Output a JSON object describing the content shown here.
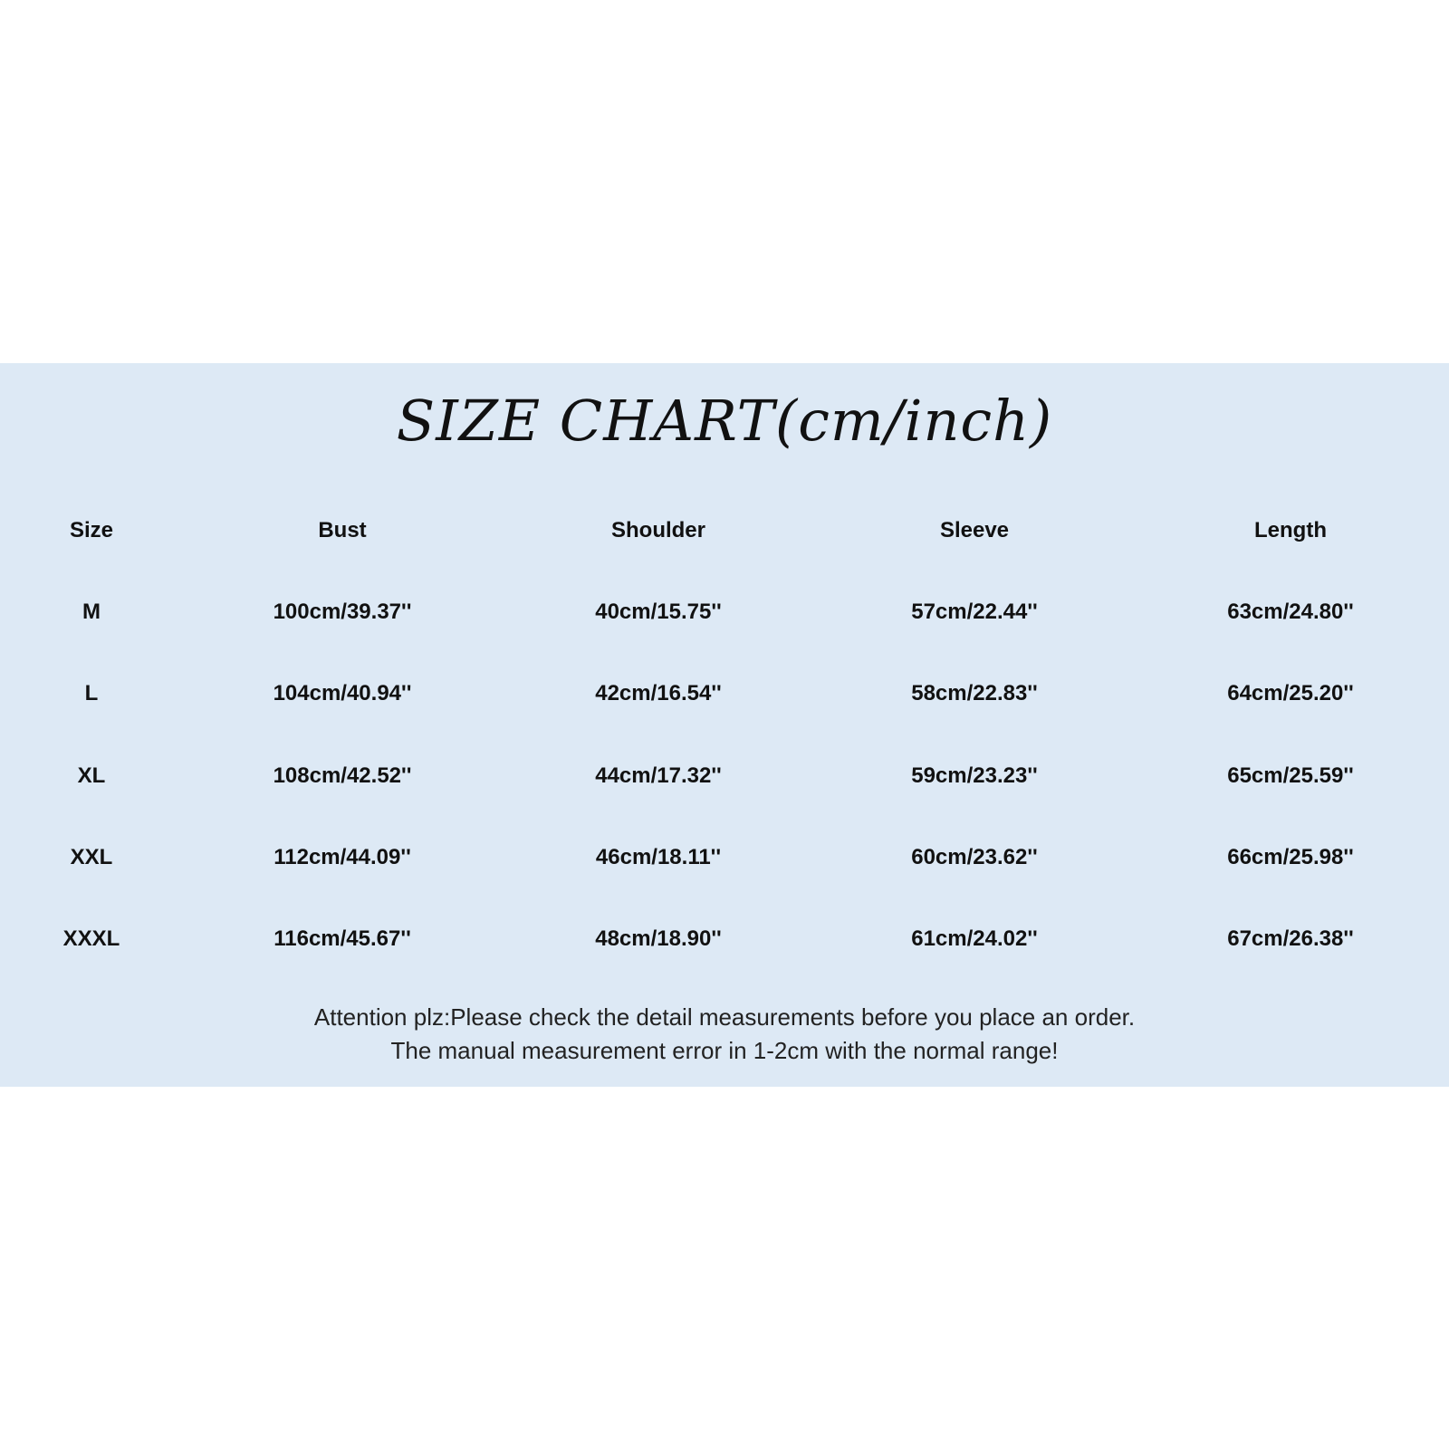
{
  "title": "SIZE CHART(cm/inch)",
  "colors": {
    "panel_background": "#dde9f5",
    "text": "#111111"
  },
  "table": {
    "headers": [
      "Size",
      "Bust",
      "Shoulder",
      "Sleeve",
      "Length"
    ],
    "rows": [
      [
        "M",
        "100cm/39.37''",
        "40cm/15.75''",
        "57cm/22.44''",
        "63cm/24.80''"
      ],
      [
        "L",
        "104cm/40.94''",
        "42cm/16.54''",
        "58cm/22.83''",
        "64cm/25.20''"
      ],
      [
        "XL",
        "108cm/42.52''",
        "44cm/17.32''",
        "59cm/23.23''",
        "65cm/25.59''"
      ],
      [
        "XXL",
        "112cm/44.09''",
        "46cm/18.11''",
        "60cm/23.62''",
        "66cm/25.98''"
      ],
      [
        "XXXL",
        "116cm/45.67''",
        "48cm/18.90''",
        "61cm/24.02''",
        "67cm/26.38''"
      ]
    ]
  },
  "notes": [
    "Attention plz:Please check the detail measurements before you place an order.",
    "The manual measurement error in 1-2cm with the normal range!"
  ]
}
